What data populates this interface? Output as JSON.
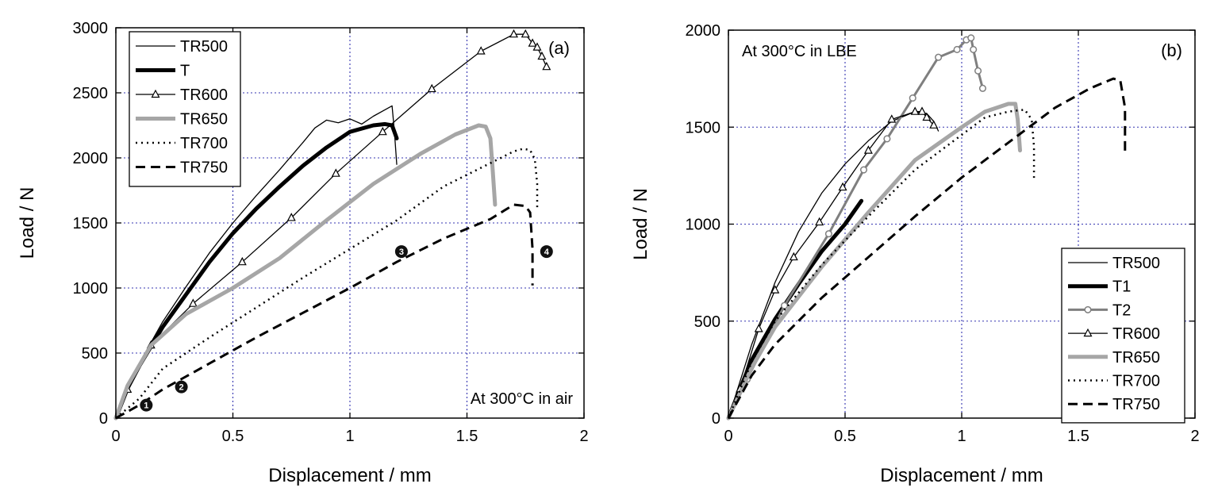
{
  "chart_data": [
    {
      "type": "line",
      "panel_label": "(a)",
      "annotation": "At 300°C in air",
      "xlabel": "Displacement / mm",
      "ylabel": "Load / N",
      "xlim": [
        0,
        2
      ],
      "ylim": [
        0,
        3000
      ],
      "x_ticks": [
        "0",
        "0.5",
        "1",
        "1.5",
        "2"
      ],
      "y_ticks": [
        "0",
        "500",
        "1000",
        "1500",
        "2000",
        "2500",
        "3000"
      ],
      "grid": true,
      "legend_position": "top-left",
      "stage_markers": [
        {
          "label": "1",
          "x": 0.13,
          "y": 100
        },
        {
          "label": "2",
          "x": 0.28,
          "y": 240
        },
        {
          "label": "3",
          "x": 1.22,
          "y": 1280
        },
        {
          "label": "4",
          "x": 1.84,
          "y": 1280
        }
      ],
      "series": [
        {
          "name": "TR500",
          "style": "thin",
          "color": "#000000",
          "x": [
            0,
            0.05,
            0.1,
            0.2,
            0.3,
            0.4,
            0.5,
            0.6,
            0.7,
            0.8,
            0.85,
            0.9,
            0.95,
            1.0,
            1.05,
            1.1,
            1.15,
            1.18,
            1.19,
            1.2
          ],
          "y": [
            0,
            230,
            420,
            740,
            1010,
            1270,
            1500,
            1710,
            1910,
            2120,
            2230,
            2290,
            2270,
            2300,
            2260,
            2320,
            2370,
            2400,
            2200,
            1950
          ]
        },
        {
          "name": "T",
          "style": "thick",
          "color": "#000000",
          "x": [
            0,
            0.05,
            0.1,
            0.2,
            0.3,
            0.4,
            0.5,
            0.6,
            0.7,
            0.8,
            0.9,
            1.0,
            1.1,
            1.15,
            1.18,
            1.2
          ],
          "y": [
            0,
            230,
            400,
            700,
            950,
            1200,
            1420,
            1610,
            1780,
            1940,
            2080,
            2200,
            2250,
            2260,
            2250,
            2150
          ]
        },
        {
          "name": "TR600",
          "style": "triangle",
          "color": "#000000",
          "x": [
            0,
            0.05,
            0.15,
            0.33,
            0.54,
            0.75,
            0.94,
            1.14,
            1.35,
            1.56,
            1.7,
            1.75,
            1.78,
            1.8,
            1.82,
            1.84
          ],
          "y": [
            0,
            220,
            560,
            880,
            1200,
            1540,
            1880,
            2200,
            2530,
            2820,
            2950,
            2950,
            2880,
            2850,
            2780,
            2700
          ]
        },
        {
          "name": "TR650",
          "style": "gray",
          "color": "#a6a6a6",
          "x": [
            0,
            0.05,
            0.15,
            0.3,
            0.5,
            0.7,
            0.9,
            1.1,
            1.3,
            1.45,
            1.55,
            1.58,
            1.6,
            1.61,
            1.62
          ],
          "y": [
            0,
            250,
            560,
            800,
            1000,
            1230,
            1520,
            1800,
            2030,
            2180,
            2250,
            2240,
            2150,
            1900,
            1640
          ]
        },
        {
          "name": "TR700",
          "style": "dotted",
          "color": "#000000",
          "x": [
            0,
            0.1,
            0.2,
            0.4,
            0.6,
            0.8,
            1.0,
            1.2,
            1.4,
            1.6,
            1.7,
            1.74,
            1.77,
            1.79,
            1.8,
            1.8
          ],
          "y": [
            0,
            150,
            380,
            620,
            850,
            1080,
            1300,
            1520,
            1780,
            1960,
            2050,
            2070,
            2060,
            1990,
            1800,
            1600
          ]
        },
        {
          "name": "TR750",
          "style": "dashed",
          "color": "#000000",
          "x": [
            0,
            0.1,
            0.2,
            0.4,
            0.6,
            0.8,
            1.0,
            1.2,
            1.4,
            1.6,
            1.7,
            1.75,
            1.77,
            1.78,
            1.78
          ],
          "y": [
            0,
            100,
            220,
            420,
            620,
            810,
            1000,
            1200,
            1380,
            1530,
            1640,
            1630,
            1580,
            1300,
            1020
          ]
        }
      ]
    },
    {
      "type": "line",
      "panel_label": "(b)",
      "annotation": "At 300°C in LBE",
      "xlabel": "Displacement / mm",
      "ylabel": "Load / N",
      "xlim": [
        0,
        2
      ],
      "ylim": [
        0,
        2000
      ],
      "x_ticks": [
        "0",
        "0.5",
        "1",
        "1.5",
        "2"
      ],
      "y_ticks": [
        "0",
        "500",
        "1000",
        "1500",
        "2000"
      ],
      "grid": true,
      "legend_position": "bottom-right",
      "series": [
        {
          "name": "TR500",
          "style": "thin",
          "color": "#000000",
          "x": [
            0,
            0.1,
            0.2,
            0.3,
            0.4,
            0.5,
            0.6,
            0.7,
            0.8,
            0.85,
            0.88,
            0.9
          ],
          "y": [
            0,
            380,
            700,
            960,
            1160,
            1310,
            1430,
            1530,
            1580,
            1570,
            1530,
            1480
          ]
        },
        {
          "name": "T1",
          "style": "thick",
          "color": "#000000",
          "x": [
            0,
            0.1,
            0.2,
            0.3,
            0.4,
            0.5,
            0.57
          ],
          "y": [
            0,
            300,
            510,
            690,
            860,
            1000,
            1120
          ]
        },
        {
          "name": "T2",
          "style": "circle",
          "color": "#7f7f7f",
          "x": [
            0,
            0.08,
            0.24,
            0.43,
            0.58,
            0.68,
            0.79,
            0.9,
            0.98,
            1.02,
            1.04,
            1.05,
            1.07,
            1.09
          ],
          "y": [
            0,
            200,
            580,
            950,
            1280,
            1440,
            1650,
            1860,
            1900,
            1950,
            1960,
            1900,
            1790,
            1700
          ]
        },
        {
          "name": "TR600",
          "style": "triangle",
          "color": "#000000",
          "x": [
            0,
            0.05,
            0.13,
            0.2,
            0.28,
            0.39,
            0.49,
            0.6,
            0.7,
            0.8,
            0.83,
            0.85,
            0.88
          ],
          "y": [
            0,
            150,
            460,
            660,
            830,
            1010,
            1190,
            1380,
            1540,
            1580,
            1580,
            1550,
            1510
          ]
        },
        {
          "name": "TR650",
          "style": "gray",
          "color": "#a6a6a6",
          "x": [
            0,
            0.1,
            0.2,
            0.4,
            0.6,
            0.8,
            1.0,
            1.1,
            1.2,
            1.23,
            1.24,
            1.25
          ],
          "y": [
            0,
            260,
            470,
            780,
            1060,
            1330,
            1500,
            1580,
            1620,
            1620,
            1540,
            1380
          ]
        },
        {
          "name": "TR700",
          "style": "dotted",
          "color": "#000000",
          "x": [
            0,
            0.1,
            0.2,
            0.4,
            0.6,
            0.8,
            1.0,
            1.1,
            1.2,
            1.27,
            1.3,
            1.31,
            1.31
          ],
          "y": [
            0,
            290,
            500,
            790,
            1040,
            1280,
            1460,
            1550,
            1580,
            1590,
            1540,
            1400,
            1220
          ]
        },
        {
          "name": "TR750",
          "style": "dashed",
          "color": "#000000",
          "x": [
            0,
            0.1,
            0.2,
            0.4,
            0.6,
            0.8,
            1.0,
            1.2,
            1.4,
            1.55,
            1.65,
            1.68,
            1.7,
            1.7
          ],
          "y": [
            0,
            220,
            380,
            620,
            830,
            1040,
            1240,
            1420,
            1600,
            1700,
            1750,
            1740,
            1600,
            1350
          ]
        }
      ]
    }
  ]
}
